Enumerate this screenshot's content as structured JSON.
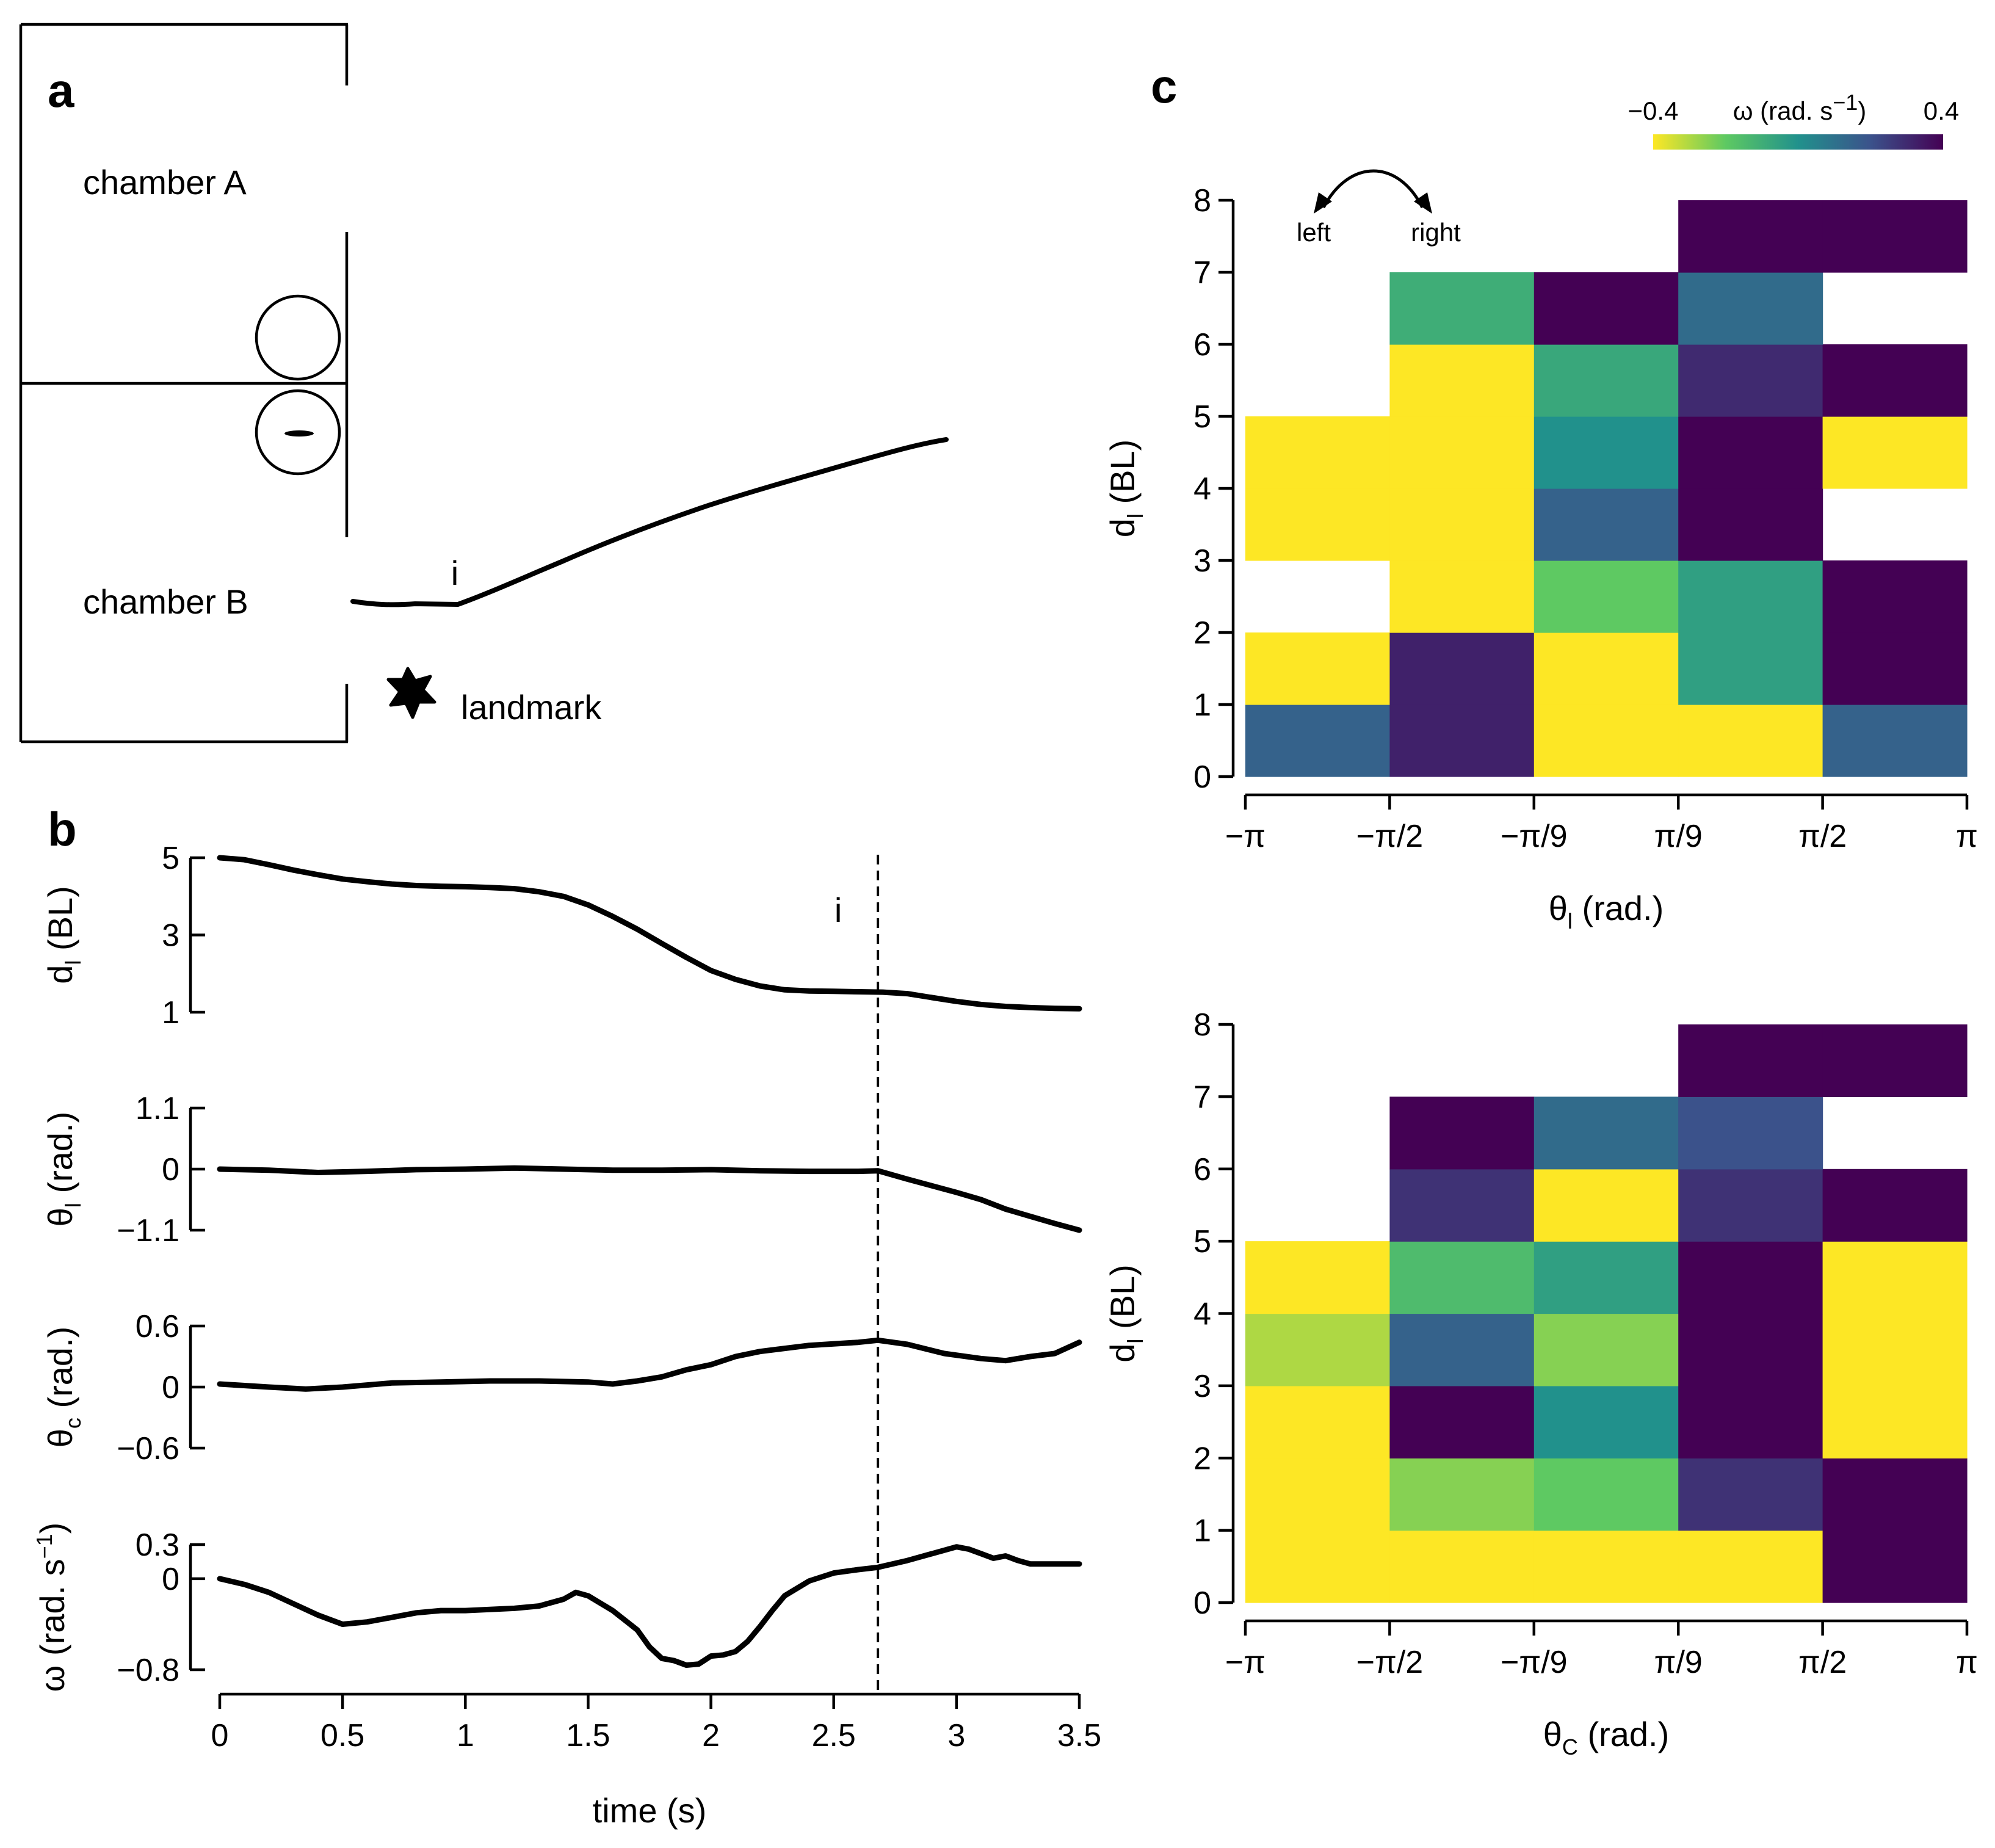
{
  "panel_a": {
    "letter": "a",
    "chamber_a": "chamber A",
    "chamber_b": "chamber B",
    "landmark": "landmark",
    "event_marker": "i"
  },
  "panel_b": {
    "letter": "b",
    "event_marker": "i",
    "xlabel": "time (s)"
  },
  "panel_c": {
    "letter": "c",
    "colorbar": {
      "min_label": "−0.4",
      "max_label": "0.4",
      "title_pre": "ω (rad. s",
      "title_sup": "−1",
      "title_post": ")"
    },
    "direction_left": "left",
    "direction_right": "right"
  },
  "colors": {
    "viridis_dark": "#440154",
    "viridis_yellow": "#fde725",
    "line": "#000000"
  },
  "chart_data": [
    {
      "type": "line",
      "title": "",
      "ylabel_main": "d",
      "ylabel_sub": "l",
      "ylabel_paren": "(BL)",
      "ylim": [
        1,
        5
      ],
      "yticks": [
        1,
        3,
        5
      ],
      "ytick_labels": [
        "1",
        "3",
        "5"
      ],
      "xlim": [
        0,
        3.5
      ],
      "event_time": 2.68,
      "series": [
        {
          "name": "dl",
          "x": [
            0,
            0.1,
            0.2,
            0.3,
            0.4,
            0.5,
            0.6,
            0.7,
            0.8,
            0.9,
            1.0,
            1.1,
            1.2,
            1.3,
            1.4,
            1.5,
            1.6,
            1.7,
            1.8,
            1.9,
            2.0,
            2.1,
            2.2,
            2.3,
            2.4,
            2.5,
            2.6,
            2.7,
            2.8,
            2.9,
            3.0,
            3.1,
            3.2,
            3.3,
            3.4,
            3.5
          ],
          "y": [
            5.0,
            4.95,
            4.82,
            4.68,
            4.56,
            4.45,
            4.38,
            4.32,
            4.28,
            4.26,
            4.25,
            4.23,
            4.2,
            4.12,
            4.0,
            3.78,
            3.48,
            3.15,
            2.78,
            2.42,
            2.08,
            1.85,
            1.68,
            1.58,
            1.55,
            1.54,
            1.53,
            1.52,
            1.48,
            1.38,
            1.28,
            1.2,
            1.15,
            1.12,
            1.1,
            1.09
          ]
        }
      ]
    },
    {
      "type": "line",
      "ylabel_main": "θ",
      "ylabel_sub": "l",
      "ylabel_paren": "(rad.)",
      "ylim": [
        -1.1,
        1.1
      ],
      "yticks": [
        -1.1,
        0,
        1.1
      ],
      "ytick_labels": [
        "−1.1",
        "0",
        "1.1"
      ],
      "xlim": [
        0,
        3.5
      ],
      "series": [
        {
          "name": "theta_l",
          "x": [
            0,
            0.2,
            0.4,
            0.6,
            0.8,
            1.0,
            1.2,
            1.4,
            1.6,
            1.8,
            2.0,
            2.2,
            2.4,
            2.6,
            2.68,
            2.8,
            2.9,
            3.0,
            3.1,
            3.2,
            3.3,
            3.4,
            3.5
          ],
          "y": [
            0.0,
            -0.02,
            -0.06,
            -0.04,
            -0.01,
            0.0,
            0.02,
            0.0,
            -0.02,
            -0.02,
            -0.01,
            -0.03,
            -0.04,
            -0.04,
            -0.03,
            -0.18,
            -0.3,
            -0.42,
            -0.55,
            -0.72,
            -0.85,
            -0.98,
            -1.1
          ]
        }
      ]
    },
    {
      "type": "line",
      "ylabel_main": "θ",
      "ylabel_sub": "c",
      "ylabel_paren": "(rad.)",
      "ylim": [
        -0.6,
        0.6
      ],
      "yticks": [
        -0.6,
        0,
        0.6
      ],
      "ytick_labels": [
        "−0.6",
        "0",
        "0.6"
      ],
      "xlim": [
        0,
        3.5
      ],
      "series": [
        {
          "name": "theta_c",
          "x": [
            0,
            0.2,
            0.35,
            0.5,
            0.7,
            0.9,
            1.1,
            1.3,
            1.5,
            1.6,
            1.7,
            1.8,
            1.9,
            2.0,
            2.1,
            2.2,
            2.4,
            2.6,
            2.68,
            2.8,
            2.95,
            3.1,
            3.2,
            3.3,
            3.4,
            3.5
          ],
          "y": [
            0.03,
            0.0,
            -0.02,
            0.0,
            0.04,
            0.05,
            0.06,
            0.06,
            0.05,
            0.03,
            0.06,
            0.1,
            0.17,
            0.22,
            0.3,
            0.35,
            0.41,
            0.44,
            0.46,
            0.42,
            0.33,
            0.28,
            0.26,
            0.3,
            0.33,
            0.44
          ]
        }
      ]
    },
    {
      "type": "line",
      "ylabel_main": "ω",
      "ylabel_paren": "(rad. s",
      "ylabel_sup": "−1",
      "ylim": [
        -0.8,
        0.3
      ],
      "yticks": [
        -0.8,
        0,
        0.3
      ],
      "ytick_labels": [
        "−0.8",
        "0",
        "0.3"
      ],
      "xlim": [
        0,
        3.5
      ],
      "xticks": [
        0,
        0.5,
        1,
        1.5,
        2,
        2.5,
        3,
        3.5
      ],
      "xtick_labels": [
        "0",
        "0.5",
        "1",
        "1.5",
        "2",
        "2.5",
        "3",
        "3.5"
      ],
      "series": [
        {
          "name": "omega",
          "x": [
            0,
            0.1,
            0.2,
            0.3,
            0.4,
            0.5,
            0.6,
            0.7,
            0.8,
            0.9,
            1.0,
            1.1,
            1.2,
            1.3,
            1.4,
            1.45,
            1.5,
            1.6,
            1.7,
            1.75,
            1.8,
            1.85,
            1.9,
            1.95,
            2.0,
            2.05,
            2.1,
            2.15,
            2.2,
            2.25,
            2.3,
            2.4,
            2.5,
            2.6,
            2.68,
            2.8,
            2.9,
            3.0,
            3.05,
            3.1,
            3.15,
            3.2,
            3.25,
            3.3,
            3.4,
            3.5
          ],
          "y": [
            0,
            -0.05,
            -0.12,
            -0.22,
            -0.32,
            -0.4,
            -0.38,
            -0.34,
            -0.3,
            -0.28,
            -0.28,
            -0.27,
            -0.26,
            -0.24,
            -0.18,
            -0.12,
            -0.15,
            -0.28,
            -0.45,
            -0.6,
            -0.7,
            -0.72,
            -0.76,
            -0.75,
            -0.68,
            -0.67,
            -0.64,
            -0.55,
            -0.42,
            -0.28,
            -0.15,
            -0.02,
            0.05,
            0.08,
            0.1,
            0.16,
            0.22,
            0.28,
            0.26,
            0.22,
            0.18,
            0.2,
            0.16,
            0.13,
            0.13,
            0.13
          ]
        }
      ]
    },
    {
      "type": "heatmap",
      "panel": "c-top",
      "xlabel_main": "θ",
      "xlabel_sub": "l",
      "xlabel_paren": "(rad.)",
      "ylabel_main": "d",
      "ylabel_sub": "l",
      "ylabel_paren": "(BL)",
      "x_edges_labels": [
        "−π",
        "−π/2",
        "−π/9",
        "π/9",
        "π/2",
        "π"
      ],
      "y_edges": [
        0,
        1,
        2,
        3,
        4,
        5,
        6,
        7,
        8
      ],
      "y_edges_labels": [
        "0",
        "1",
        "2",
        "3",
        "4",
        "5",
        "6",
        "7",
        "8"
      ],
      "value_range": [
        -0.4,
        0.4
      ],
      "values": [
        [
          0.15,
          0.32,
          -0.4,
          -0.4,
          0.15
        ],
        [
          -0.4,
          0.32,
          -0.4,
          -0.05,
          0.4
        ],
        [
          null,
          -0.4,
          -0.2,
          -0.05,
          0.4
        ],
        [
          -0.4,
          -0.4,
          0.15,
          0.4,
          null
        ],
        [
          -0.4,
          -0.4,
          0.0,
          0.4,
          -0.4
        ],
        [
          null,
          -0.4,
          -0.08,
          0.3,
          0.4
        ],
        [
          null,
          -0.1,
          0.4,
          0.12,
          null
        ],
        [
          null,
          null,
          null,
          0.4,
          0.4
        ]
      ]
    },
    {
      "type": "heatmap",
      "panel": "c-bottom",
      "xlabel_main": "θ",
      "xlabel_sub": "C",
      "xlabel_paren": "(rad.)",
      "ylabel_main": "d",
      "ylabel_sub": "l",
      "ylabel_paren": "(BL)",
      "x_edges_labels": [
        "−π",
        "−π/2",
        "−π/9",
        "π/9",
        "π/2",
        "π"
      ],
      "y_edges": [
        0,
        1,
        2,
        3,
        4,
        5,
        6,
        7,
        8
      ],
      "y_edges_labels": [
        "0",
        "1",
        "2",
        "3",
        "4",
        "5",
        "6",
        "7",
        "8"
      ],
      "value_range": [
        -0.4,
        0.4
      ],
      "values": [
        [
          -0.4,
          -0.4,
          -0.4,
          -0.4,
          0.4
        ],
        [
          -0.4,
          -0.25,
          -0.2,
          0.28,
          0.4
        ],
        [
          -0.4,
          0.4,
          0.0,
          0.4,
          -0.4
        ],
        [
          -0.3,
          0.15,
          -0.25,
          0.4,
          -0.4
        ],
        [
          -0.4,
          -0.15,
          -0.05,
          0.4,
          -0.4
        ],
        [
          null,
          0.28,
          -0.4,
          0.28,
          0.4
        ],
        [
          null,
          0.4,
          0.12,
          0.2,
          null
        ],
        [
          null,
          null,
          null,
          0.4,
          0.4
        ]
      ]
    }
  ]
}
